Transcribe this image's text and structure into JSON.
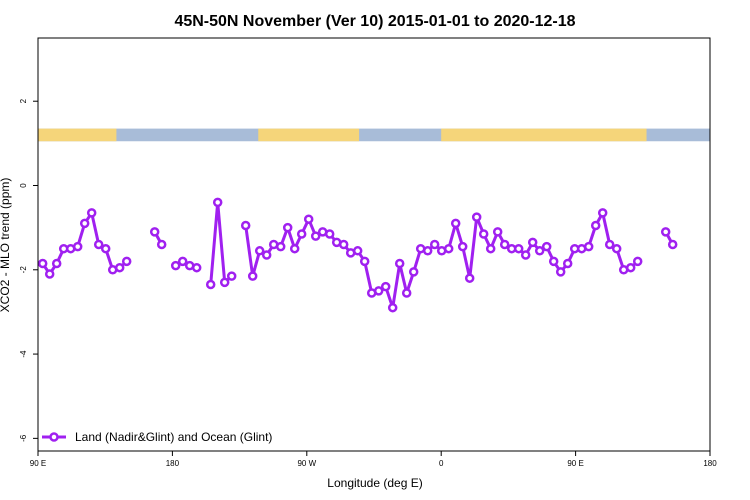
{
  "chart_data": {
    "type": "line",
    "title": "45N-50N November (Ver 10)   2015-01-01 to 2020-12-18",
    "xlabel": "Longitude (deg E)",
    "ylabel": "XCO2 - MLO trend (ppm)",
    "xlim": [
      90,
      450
    ],
    "ylim": [
      -6.3,
      3.5
    ],
    "x_ticks": [
      {
        "value": 90,
        "label": "90 E"
      },
      {
        "value": 162,
        "label": "180"
      },
      {
        "value": 234,
        "label": "90 W"
      },
      {
        "value": 306,
        "label": "0"
      },
      {
        "value": 378,
        "label": "90 E"
      },
      {
        "value": 450,
        "label": "180"
      }
    ],
    "y_ticks": [
      {
        "value": 2,
        "label": "2"
      },
      {
        "value": 0,
        "label": "0"
      },
      {
        "value": -2,
        "label": "-2"
      },
      {
        "value": -4,
        "label": "-4"
      },
      {
        "value": -6,
        "label": "-6"
      }
    ],
    "land_strip": {
      "y_range": [
        1.05,
        1.35
      ],
      "land_color": "#f5d57a",
      "ocean_color": "#a8bcd8",
      "land_segments": [
        [
          90,
          132
        ],
        [
          208,
          262
        ],
        [
          306,
          416
        ]
      ]
    },
    "series_color": "#a020f0",
    "series": [
      {
        "name": "Land (Nadir&Glint) and Ocean (Glint)",
        "segments": [
          [
            [
              92.5,
              -1.85
            ],
            [
              96.25,
              -2.1
            ],
            [
              100,
              -1.85
            ],
            [
              103.75,
              -1.5
            ],
            [
              107.5,
              -1.5
            ],
            [
              111.25,
              -1.45
            ],
            [
              115,
              -0.9
            ],
            [
              118.75,
              -0.65
            ],
            [
              122.5,
              -1.4
            ],
            [
              126.25,
              -1.5
            ],
            [
              130,
              -2.0
            ],
            [
              133.75,
              -1.95
            ],
            [
              137.5,
              -1.8
            ]
          ],
          [
            [
              152.5,
              -1.1
            ],
            [
              156.25,
              -1.4
            ]
          ],
          [
            [
              163.75,
              -1.9
            ],
            [
              167.5,
              -1.8
            ],
            [
              171.25,
              -1.9
            ],
            [
              175,
              -1.95
            ]
          ],
          [
            [
              182.5,
              -2.35
            ],
            [
              186.25,
              -0.4
            ],
            [
              190,
              -2.3
            ],
            [
              193.75,
              -2.15
            ]
          ],
          [
            [
              201.25,
              -0.95
            ],
            [
              205,
              -2.15
            ],
            [
              208.75,
              -1.55
            ],
            [
              212.5,
              -1.65
            ],
            [
              216.25,
              -1.4
            ],
            [
              220,
              -1.45
            ],
            [
              223.75,
              -1.0
            ],
            [
              227.5,
              -1.5
            ],
            [
              231.25,
              -1.15
            ],
            [
              235,
              -0.8
            ],
            [
              238.75,
              -1.2
            ],
            [
              242.5,
              -1.1
            ],
            [
              246.25,
              -1.15
            ],
            [
              250,
              -1.35
            ],
            [
              253.75,
              -1.4
            ],
            [
              257.5,
              -1.6
            ],
            [
              261.25,
              -1.55
            ],
            [
              265,
              -1.8
            ],
            [
              268.75,
              -2.55
            ],
            [
              272.5,
              -2.5
            ],
            [
              276.25,
              -2.4
            ],
            [
              280,
              -2.9
            ],
            [
              283.75,
              -1.85
            ],
            [
              287.5,
              -2.55
            ],
            [
              291.25,
              -2.05
            ],
            [
              295,
              -1.5
            ],
            [
              298.75,
              -1.55
            ],
            [
              302.5,
              -1.4
            ],
            [
              306.25,
              -1.55
            ],
            [
              310,
              -1.5
            ],
            [
              313.75,
              -0.9
            ],
            [
              317.5,
              -1.45
            ],
            [
              321.25,
              -2.2
            ],
            [
              325,
              -0.75
            ],
            [
              328.75,
              -1.15
            ],
            [
              332.5,
              -1.5
            ],
            [
              336.25,
              -1.1
            ],
            [
              340,
              -1.4
            ],
            [
              343.75,
              -1.5
            ],
            [
              347.5,
              -1.5
            ],
            [
              351.25,
              -1.65
            ],
            [
              355,
              -1.35
            ],
            [
              358.75,
              -1.55
            ],
            [
              362.5,
              -1.45
            ],
            [
              366.25,
              -1.8
            ],
            [
              370,
              -2.05
            ],
            [
              373.75,
              -1.85
            ],
            [
              377.5,
              -1.5
            ],
            [
              381.25,
              -1.5
            ],
            [
              385,
              -1.45
            ],
            [
              388.75,
              -0.95
            ],
            [
              392.5,
              -0.65
            ],
            [
              396.25,
              -1.4
            ],
            [
              400,
              -1.5
            ],
            [
              403.75,
              -2.0
            ],
            [
              407.5,
              -1.95
            ],
            [
              411.25,
              -1.8
            ]
          ],
          [
            [
              426.25,
              -1.1
            ],
            [
              430,
              -1.4
            ]
          ]
        ]
      }
    ],
    "legend": {
      "position": "bottom-left",
      "label": "Land (Nadir&Glint) and Ocean (Glint)"
    },
    "grid": false
  }
}
